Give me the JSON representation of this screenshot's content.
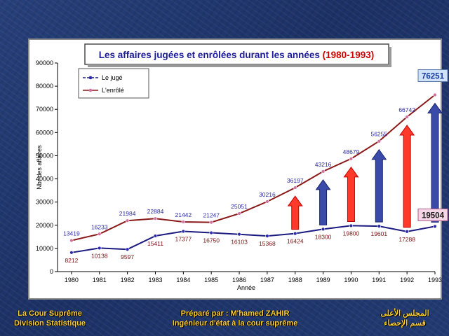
{
  "chart_data": {
    "type": "line",
    "title": "Les affaires jugées et enrôlées durant les années",
    "title_period": "(1980-1993)",
    "title_color": "#1a1a9a",
    "title_period_color": "#cc0000",
    "xlabel": "Année",
    "ylabel": "Nbr des affaires",
    "categories": [
      "1980",
      "1981",
      "1982",
      "1983",
      "1984",
      "1985",
      "1986",
      "1987",
      "1988",
      "1989",
      "1990",
      "1991",
      "1992",
      "1993"
    ],
    "ylim": [
      0,
      90000
    ],
    "yticks": [
      "0",
      "10000",
      "20000",
      "30000",
      "40000",
      "50000",
      "60000",
      "70000",
      "80000",
      "90000"
    ],
    "grid": false,
    "legend_position": "top-left",
    "series": [
      {
        "name": "Le jugé",
        "color": "#1a1a80",
        "label_color": "#7a1010",
        "values": [
          8212,
          10138,
          9597,
          15411,
          17377,
          16750,
          16103,
          15368,
          16424,
          18300,
          19800,
          19601,
          17288,
          19504
        ]
      },
      {
        "name": "L'enrôlé",
        "color": "#8a1818",
        "label_color": "#2a2aa0",
        "values": [
          13419,
          16233,
          21984,
          22884,
          21442,
          21247,
          25051,
          30216,
          36197,
          43216,
          48679,
          56255,
          66742,
          76251
        ]
      }
    ],
    "highlights": [
      {
        "label": "76251",
        "fill": "#cfe2f7",
        "color": "#1a3aa0"
      },
      {
        "label": "19504",
        "fill": "#f5d6e6",
        "color": "#1a1a1a"
      }
    ],
    "arrows": [
      {
        "x": "1988",
        "color": "red"
      },
      {
        "x": "1989",
        "color": "blue"
      },
      {
        "x": "1990",
        "color": "red"
      },
      {
        "x": "1991",
        "color": "blue"
      },
      {
        "x": "1992",
        "color": "red"
      },
      {
        "x": "1993",
        "color": "blue"
      }
    ]
  },
  "footer": {
    "left": [
      "La Cour Suprême",
      "Division Statistique"
    ],
    "center": [
      "Préparé par : M'hamed ZAHIR",
      "Ingénieur d'état à la cour suprême"
    ],
    "right": [
      "المجلس الأعلى",
      "قسم الإحصاء"
    ]
  }
}
